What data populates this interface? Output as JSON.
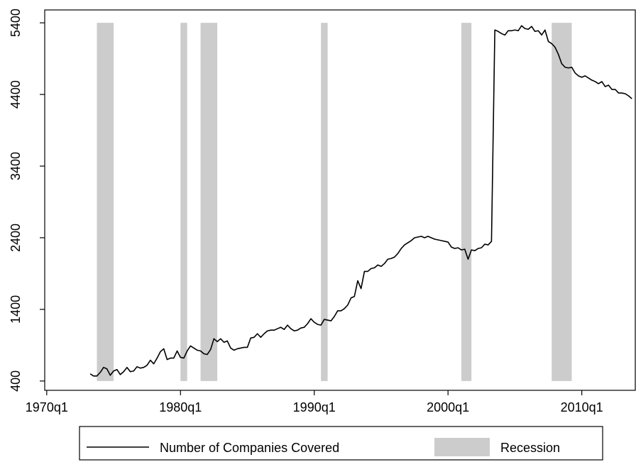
{
  "chart_data": {
    "type": "line",
    "x": [
      "1973q2",
      "1973q3",
      "1973q4",
      "1974q1",
      "1974q2",
      "1974q3",
      "1974q4",
      "1975q1",
      "1975q2",
      "1975q3",
      "1975q4",
      "1976q1",
      "1976q2",
      "1976q3",
      "1976q4",
      "1977q1",
      "1977q2",
      "1977q3",
      "1977q4",
      "1978q1",
      "1978q2",
      "1978q3",
      "1978q4",
      "1979q1",
      "1979q2",
      "1979q3",
      "1979q4",
      "1980q1",
      "1980q2",
      "1980q3",
      "1980q4",
      "1981q1",
      "1981q2",
      "1981q3",
      "1981q4",
      "1982q1",
      "1982q2",
      "1982q3",
      "1982q4",
      "1983q1",
      "1983q2",
      "1983q3",
      "1983q4",
      "1984q1",
      "1984q2",
      "1984q3",
      "1984q4",
      "1985q1",
      "1985q2",
      "1985q3",
      "1985q4",
      "1986q1",
      "1986q2",
      "1986q3",
      "1986q4",
      "1987q1",
      "1987q2",
      "1987q3",
      "1987q4",
      "1988q1",
      "1988q2",
      "1988q3",
      "1988q4",
      "1989q1",
      "1989q2",
      "1989q3",
      "1989q4",
      "1990q1",
      "1990q2",
      "1990q3",
      "1990q4",
      "1991q1",
      "1991q2",
      "1991q3",
      "1991q4",
      "1992q1",
      "1992q2",
      "1992q3",
      "1992q4",
      "1993q1",
      "1993q2",
      "1993q3",
      "1993q4",
      "1994q1",
      "1994q2",
      "1994q3",
      "1994q4",
      "1995q1",
      "1995q2",
      "1995q3",
      "1995q4",
      "1996q1",
      "1996q2",
      "1996q3",
      "1996q4",
      "1997q1",
      "1997q2",
      "1997q3",
      "1997q4",
      "1998q1",
      "1998q2",
      "1998q3",
      "1998q4",
      "1999q1",
      "1999q2",
      "1999q3",
      "1999q4",
      "2000q1",
      "2000q2",
      "2000q3",
      "2000q4",
      "2001q1",
      "2001q2",
      "2001q3",
      "2001q4",
      "2002q1",
      "2002q2",
      "2002q3",
      "2002q4",
      "2003q1",
      "2003q2",
      "2003q3",
      "2003q4",
      "2004q1",
      "2004q2",
      "2004q3",
      "2004q4",
      "2005q1",
      "2005q2",
      "2005q3",
      "2005q4",
      "2006q1",
      "2006q2",
      "2006q3",
      "2006q4",
      "2007q1",
      "2007q2",
      "2007q3",
      "2007q4",
      "2008q1",
      "2008q2",
      "2008q3",
      "2008q4",
      "2009q1",
      "2009q2",
      "2009q3",
      "2009q4",
      "2010q1",
      "2010q2",
      "2010q3",
      "2010q4",
      "2011q1",
      "2011q2",
      "2011q3",
      "2011q4",
      "2012q1",
      "2012q2",
      "2012q3",
      "2012q4",
      "2013q1",
      "2013q2",
      "2013q3",
      "2013q4"
    ],
    "series": [
      {
        "name": "Number of Companies Covered",
        "color": "#000000",
        "values": [
          500,
          470,
          470,
          520,
          590,
          570,
          480,
          540,
          560,
          490,
          530,
          590,
          530,
          540,
          600,
          580,
          590,
          620,
          690,
          640,
          720,
          810,
          850,
          700,
          720,
          720,
          820,
          730,
          720,
          820,
          890,
          860,
          830,
          820,
          780,
          770,
          840,
          990,
          950,
          990,
          940,
          960,
          860,
          830,
          850,
          860,
          870,
          870,
          1000,
          1010,
          1060,
          1010,
          1060,
          1100,
          1110,
          1110,
          1130,
          1150,
          1120,
          1180,
          1130,
          1100,
          1110,
          1140,
          1150,
          1200,
          1270,
          1220,
          1190,
          1180,
          1260,
          1250,
          1240,
          1300,
          1380,
          1380,
          1410,
          1460,
          1560,
          1580,
          1800,
          1690,
          1930,
          1930,
          1970,
          1980,
          2020,
          2000,
          2040,
          2100,
          2110,
          2130,
          2180,
          2250,
          2300,
          2330,
          2360,
          2400,
          2410,
          2420,
          2400,
          2420,
          2400,
          2380,
          2370,
          2360,
          2350,
          2340,
          2270,
          2250,
          2260,
          2230,
          2240,
          2100,
          2230,
          2220,
          2250,
          2260,
          2310,
          2300,
          2350,
          5300,
          5280,
          5250,
          5230,
          5290,
          5290,
          5300,
          5290,
          5360,
          5320,
          5310,
          5350,
          5280,
          5290,
          5230,
          5300,
          5140,
          5110,
          5060,
          4960,
          4830,
          4780,
          4770,
          4780,
          4700,
          4660,
          4640,
          4660,
          4630,
          4600,
          4580,
          4550,
          4580,
          4510,
          4530,
          4470,
          4470,
          4420,
          4420,
          4410,
          4380,
          4340
        ]
      }
    ],
    "recession_label": "Recession",
    "recession_color": "#cccccc",
    "recession_range": [
      400,
      5400
    ],
    "recessions": [
      {
        "start": "1973q4",
        "end": "1975q1"
      },
      {
        "start": "1980q1",
        "end": "1980q3"
      },
      {
        "start": "1981q3",
        "end": "1982q4"
      },
      {
        "start": "1990q3",
        "end": "1991q1"
      },
      {
        "start": "2001q1",
        "end": "2001q4"
      },
      {
        "start": "2007q4",
        "end": "2009q2"
      }
    ],
    "xlim": [
      1969.85,
      2014
    ],
    "xticks": [
      {
        "value": 1970,
        "label": "1970q1"
      },
      {
        "value": 1980,
        "label": "1980q1"
      },
      {
        "value": 1990,
        "label": "1990q1"
      },
      {
        "value": 2000,
        "label": "2000q1"
      },
      {
        "value": 2010,
        "label": "2010q1"
      }
    ],
    "ylim": [
      270,
      5580
    ],
    "yticks": [
      400,
      1400,
      2400,
      3400,
      4400,
      5400
    ]
  }
}
